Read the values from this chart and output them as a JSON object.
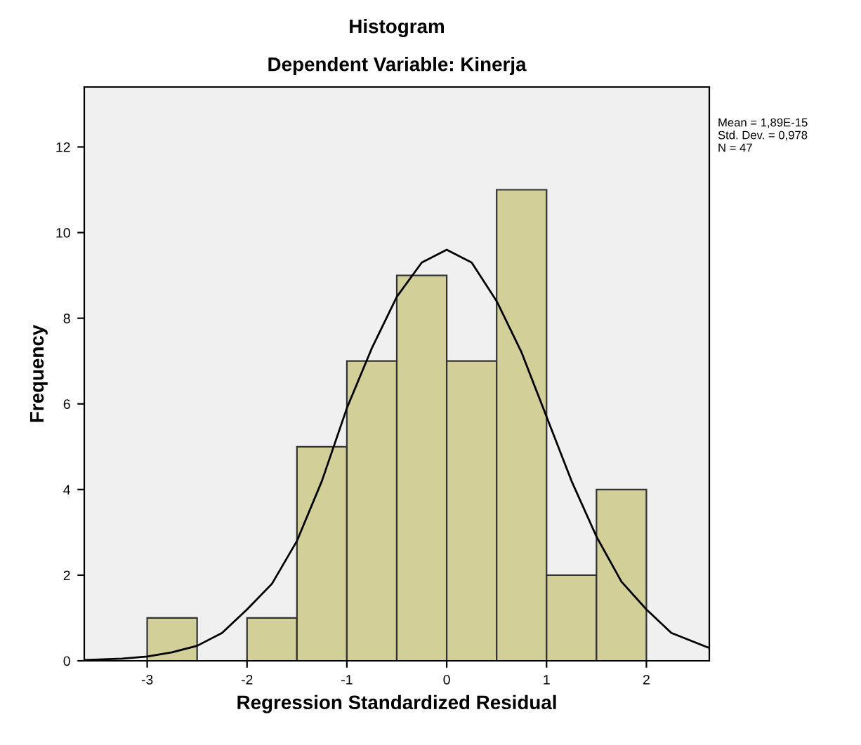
{
  "chart_data": {
    "type": "histogram",
    "title": "Histogram",
    "subtitle": "Dependent Variable: Kinerja",
    "xlabel": "Regression Standardized Residual",
    "ylabel": "Frequency",
    "annotations": [
      "Mean = 1,89E-15",
      "Std. Dev. = 0,978",
      "N = 47"
    ],
    "series": [
      {
        "color": "#d3cf99",
        "bins": [
          -3,
          -2.5,
          -2,
          -1.5,
          -1,
          -0.5,
          0,
          0.5,
          1,
          1.5,
          2
        ],
        "values": [
          1,
          0,
          1,
          5,
          7,
          9,
          7,
          11,
          2,
          4
        ]
      },
      {
        "type": "line",
        "color": "#000000",
        "x": [
          -3.63,
          -3.25,
          -3,
          -2.75,
          -2.5,
          -2.25,
          -2,
          -1.75,
          -1.5,
          -1.25,
          -1,
          -0.75,
          -0.5,
          -0.25,
          0,
          0.25,
          0.5,
          0.75,
          1,
          1.25,
          1.5,
          1.75,
          2,
          2.25,
          2.63
        ],
        "values": [
          0.02,
          0.05,
          0.1,
          0.2,
          0.35,
          0.65,
          1.2,
          1.8,
          2.8,
          4.2,
          5.9,
          7.3,
          8.5,
          9.3,
          9.6,
          9.3,
          8.4,
          7.2,
          5.7,
          4.2,
          2.9,
          1.85,
          1.2,
          0.65,
          0.3
        ]
      }
    ],
    "xlim": [
      -3.63,
      2.63
    ],
    "xticks": [
      -3,
      -2,
      -1,
      0,
      1,
      2
    ],
    "ylim": [
      0,
      13.4
    ],
    "yticks": [
      0,
      2,
      4,
      6,
      8,
      10,
      12
    ],
    "grid": false,
    "legend": false,
    "marker": "none",
    "line_style": "solid"
  }
}
